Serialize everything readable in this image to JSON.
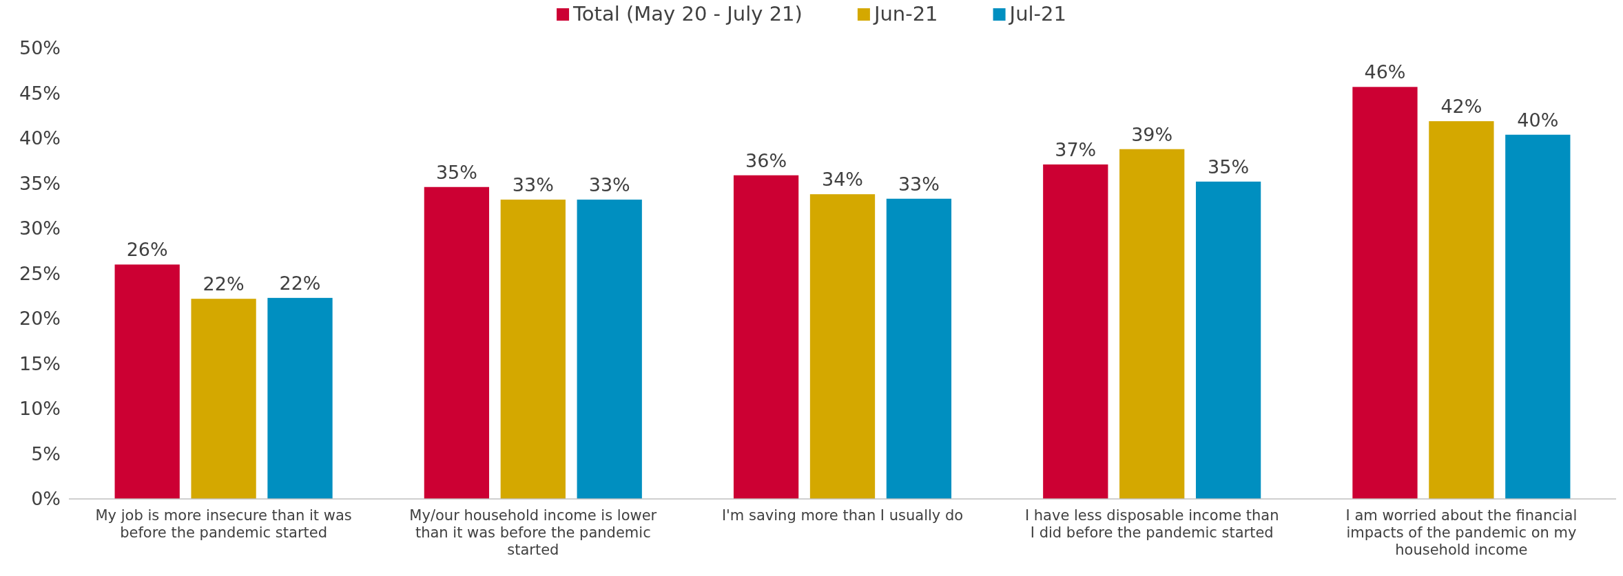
{
  "chart_data": {
    "type": "bar",
    "categories": [
      "My job is more insecure than it was before the pandemic started",
      "My/our household income is lower than it was before the pandemic started",
      "I'm saving more than I usually do",
      "I have less disposable income than I did before the pandemic started",
      "I am worried about the financial impacts of the pandemic on my household income"
    ],
    "series": [
      {
        "name": "Total (May 20 - July 21)",
        "color": "#cc0033",
        "values": [
          26.0,
          34.6,
          35.9,
          37.1,
          45.7
        ],
        "value_labels": [
          "26%",
          "35%",
          "36%",
          "37%",
          "46%"
        ]
      },
      {
        "name": "Jun-21",
        "color": "#d4a800",
        "values": [
          22.2,
          33.2,
          33.8,
          38.8,
          41.9
        ],
        "value_labels": [
          "22%",
          "33%",
          "34%",
          "39%",
          "42%"
        ]
      },
      {
        "name": "Jul-21",
        "color": "#008fc0",
        "values": [
          22.3,
          33.2,
          33.3,
          35.2,
          40.4
        ],
        "value_labels": [
          "22%",
          "33%",
          "33%",
          "35%",
          "40%"
        ]
      }
    ],
    "ylim": [
      0,
      50
    ],
    "yticks": [
      {
        "value": 0,
        "label": "0%"
      },
      {
        "value": 5,
        "label": "5%"
      },
      {
        "value": 10,
        "label": "10%"
      },
      {
        "value": 15,
        "label": "15%"
      },
      {
        "value": 20,
        "label": "20%"
      },
      {
        "value": 25,
        "label": "25%"
      },
      {
        "value": 30,
        "label": "30%"
      },
      {
        "value": 35,
        "label": "35%"
      },
      {
        "value": 40,
        "label": "40%"
      },
      {
        "value": 45,
        "label": "45%"
      },
      {
        "value": 50,
        "label": "50%"
      }
    ],
    "legend": "top",
    "grid": false
  }
}
